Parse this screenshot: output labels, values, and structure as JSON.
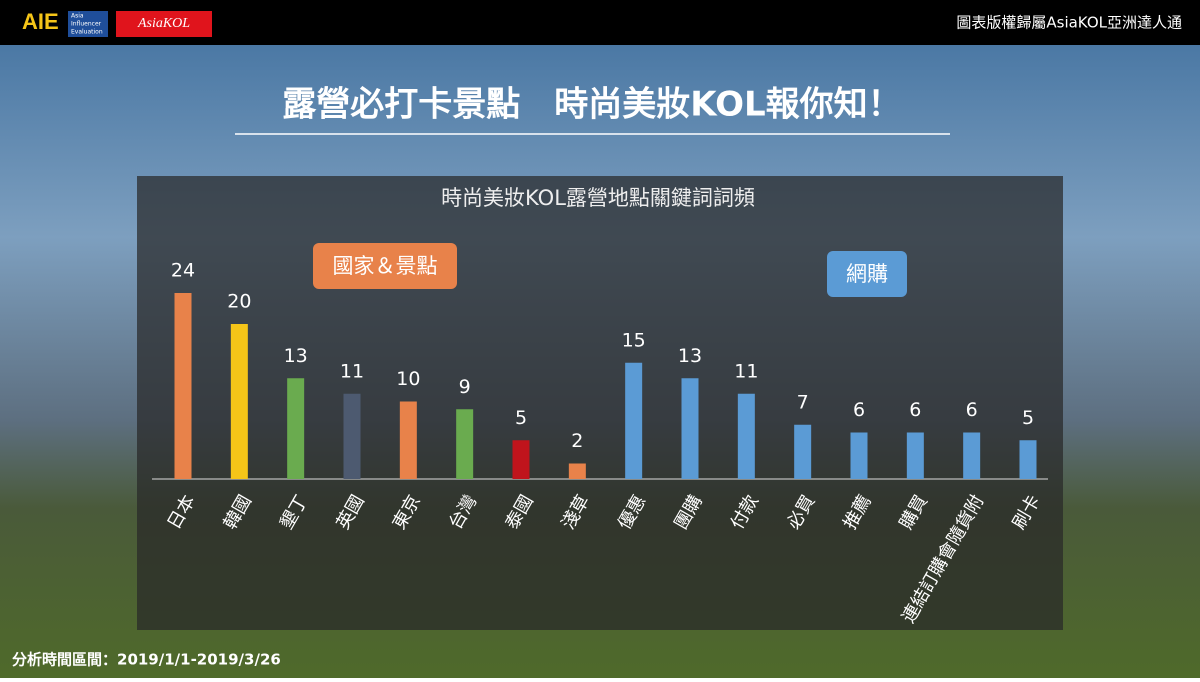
{
  "header": {
    "logo_main": "AIE",
    "logo_sub": [
      "Asia",
      "Influencer",
      "Evaluation"
    ],
    "logo_brand": "AsiaKOL",
    "copyright": "圖表版權歸屬AsiaKOL亞洲達人通"
  },
  "slide_title": "露營必打卡景點　時尚美妝KOL報你知！",
  "footer": "分析時間區間：2019/1/1-2019/3/26",
  "chart_data": {
    "type": "bar",
    "title": "時尚美妝KOL露營地點關鍵詞詞頻",
    "groups": [
      "國家＆景點",
      "網購"
    ],
    "categories": [
      "日本",
      "韓國",
      "墾丁",
      "英國",
      "東京",
      "台灣",
      "泰國",
      "淺草",
      "優惠",
      "團購",
      "付款",
      "必買",
      "推薦",
      "購買",
      "連結訂購會隨貨附",
      "刷卡"
    ],
    "values": [
      24,
      20,
      13,
      11,
      10,
      9,
      5,
      2,
      15,
      13,
      11,
      7,
      6,
      6,
      6,
      5
    ],
    "colors": [
      "#e8824a",
      "#f5c518",
      "#6aab4f",
      "#4d5a70",
      "#e8824a",
      "#6aab4f",
      "#c0141c",
      "#e8824a",
      "#5b9bd5",
      "#5b9bd5",
      "#5b9bd5",
      "#5b9bd5",
      "#5b9bd5",
      "#5b9bd5",
      "#5b9bd5",
      "#5b9bd5"
    ]
  }
}
